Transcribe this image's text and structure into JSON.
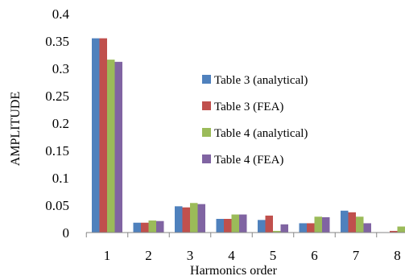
{
  "chart_data": {
    "type": "bar",
    "xlabel": "Harmonics order",
    "ylabel": "AMPLITUDE",
    "ylim": [
      0,
      0.4
    ],
    "yticks": [
      "0",
      "0.05",
      "0.1",
      "0.15",
      "0.2",
      "0.25",
      "0.3",
      "0.35",
      "0.4"
    ],
    "categories": [
      "1",
      "2",
      "3",
      "4",
      "5",
      "6",
      "7",
      "8"
    ],
    "series": [
      {
        "name": "Table 3 (analytical)",
        "color": "#4F81BD",
        "values": [
          0.355,
          0.018,
          0.048,
          0.025,
          0.023,
          0.017,
          0.04,
          0.0
        ]
      },
      {
        "name": "Table 3 (FEA)",
        "color": "#C0504D",
        "values": [
          0.355,
          0.018,
          0.046,
          0.025,
          0.031,
          0.017,
          0.037,
          0.003
        ]
      },
      {
        "name": "Table 4 (analytical)",
        "color": "#9BBB59",
        "values": [
          0.316,
          0.022,
          0.054,
          0.033,
          0.003,
          0.029,
          0.029,
          0.011
        ]
      },
      {
        "name": "Table 4 (FEA)",
        "color": "#8064A2",
        "values": [
          0.312,
          0.021,
          0.052,
          0.033,
          0.015,
          0.028,
          0.017,
          0.0
        ]
      }
    ],
    "legend": "right",
    "grid": false
  }
}
